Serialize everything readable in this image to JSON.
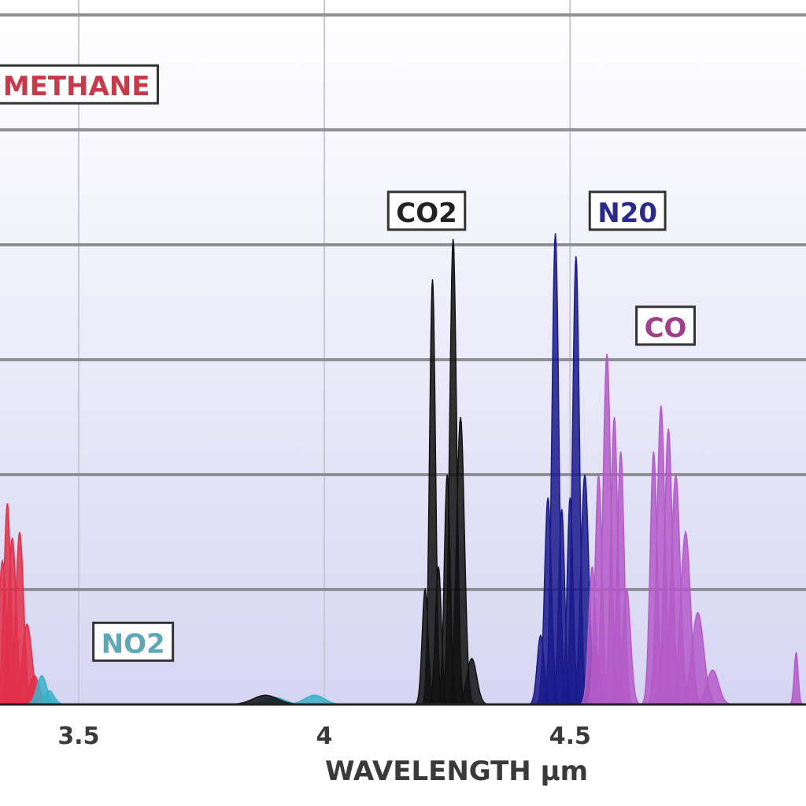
{
  "chart_data": {
    "type": "area",
    "xlabel": "WAVELENGTH µm",
    "xlim": [
      3.34,
      4.98
    ],
    "ylim": [
      0,
      6
    ],
    "x_ticks": [
      {
        "value": 3.5,
        "label": "3.5"
      },
      {
        "value": 4.0,
        "label": "4"
      },
      {
        "value": 4.5,
        "label": "4.5"
      }
    ],
    "y_gridlines": [
      1,
      2,
      3,
      4,
      5,
      6
    ],
    "grid": "horizontal and vertical",
    "background": "lavender gradient",
    "series": [
      {
        "name": "METHANE",
        "color": "#e0304a",
        "label_color": "#c83a4a",
        "peaks": [
          {
            "x": 3.345,
            "y": 1.25,
            "w": 0.008
          },
          {
            "x": 3.355,
            "y": 1.75,
            "w": 0.007
          },
          {
            "x": 3.365,
            "y": 1.45,
            "w": 0.008
          },
          {
            "x": 3.38,
            "y": 1.5,
            "w": 0.008
          },
          {
            "x": 3.395,
            "y": 0.7,
            "w": 0.01
          },
          {
            "x": 3.41,
            "y": 0.25,
            "w": 0.01
          }
        ]
      },
      {
        "name": "NO2",
        "color": "#3ab0c8",
        "label_color": "#5fa6b6",
        "peaks": [
          {
            "x": 3.425,
            "y": 0.25,
            "w": 0.01
          },
          {
            "x": 3.44,
            "y": 0.12,
            "w": 0.01
          },
          {
            "x": 3.9,
            "y": 0.06,
            "w": 0.02
          },
          {
            "x": 3.98,
            "y": 0.08,
            "w": 0.02
          }
        ]
      },
      {
        "name": "CO2",
        "color": "#111111",
        "label_color": "#222222",
        "peaks": [
          {
            "x": 3.88,
            "y": 0.08,
            "w": 0.025
          },
          {
            "x": 4.205,
            "y": 1.0,
            "w": 0.006
          },
          {
            "x": 4.22,
            "y": 3.7,
            "w": 0.006
          },
          {
            "x": 4.232,
            "y": 1.2,
            "w": 0.006
          },
          {
            "x": 4.25,
            "y": 2.0,
            "w": 0.006
          },
          {
            "x": 4.262,
            "y": 4.05,
            "w": 0.007
          },
          {
            "x": 4.277,
            "y": 2.5,
            "w": 0.008
          },
          {
            "x": 4.3,
            "y": 0.4,
            "w": 0.01
          }
        ]
      },
      {
        "name": "N2O",
        "color": "#1a1a8c",
        "label_color": "#2a2a8c",
        "peaks": [
          {
            "x": 4.44,
            "y": 0.6,
            "w": 0.007
          },
          {
            "x": 4.455,
            "y": 1.8,
            "w": 0.007
          },
          {
            "x": 4.47,
            "y": 4.1,
            "w": 0.007
          },
          {
            "x": 4.483,
            "y": 1.7,
            "w": 0.006
          },
          {
            "x": 4.5,
            "y": 1.8,
            "w": 0.006
          },
          {
            "x": 4.512,
            "y": 3.9,
            "w": 0.007
          },
          {
            "x": 4.53,
            "y": 2.0,
            "w": 0.008
          },
          {
            "x": 4.55,
            "y": 0.5,
            "w": 0.01
          }
        ]
      },
      {
        "name": "CO",
        "color": "#b45ac8",
        "label_color": "#a0408c",
        "peaks": [
          {
            "x": 4.545,
            "y": 1.2,
            "w": 0.007
          },
          {
            "x": 4.558,
            "y": 2.0,
            "w": 0.007
          },
          {
            "x": 4.575,
            "y": 3.05,
            "w": 0.008
          },
          {
            "x": 4.59,
            "y": 2.5,
            "w": 0.007
          },
          {
            "x": 4.603,
            "y": 2.2,
            "w": 0.007
          },
          {
            "x": 4.615,
            "y": 1.0,
            "w": 0.008
          },
          {
            "x": 4.67,
            "y": 2.2,
            "w": 0.007
          },
          {
            "x": 4.685,
            "y": 2.6,
            "w": 0.008
          },
          {
            "x": 4.7,
            "y": 2.4,
            "w": 0.008
          },
          {
            "x": 4.715,
            "y": 2.0,
            "w": 0.009
          },
          {
            "x": 4.735,
            "y": 1.5,
            "w": 0.01
          },
          {
            "x": 4.76,
            "y": 0.8,
            "w": 0.012
          },
          {
            "x": 4.79,
            "y": 0.3,
            "w": 0.012
          },
          {
            "x": 4.96,
            "y": 0.45,
            "w": 0.004
          }
        ]
      }
    ],
    "annotations": [
      {
        "series": "METHANE",
        "text": "METHANE",
        "x": 3.33,
        "y": 5.3,
        "text_color": "#c83a4a"
      },
      {
        "series": "CO2",
        "text": "CO2",
        "x": 4.13,
        "y": 4.2,
        "text_color": "#222222"
      },
      {
        "series": "N2O",
        "text": "N20",
        "x": 4.54,
        "y": 4.2,
        "text_color": "#2a2a8c"
      },
      {
        "series": "NO2",
        "text": "NO2",
        "x": 3.53,
        "y": 0.45,
        "text_color": "#5fa6b6"
      },
      {
        "series": "CO",
        "text": "CO",
        "x": 4.635,
        "y": 3.2,
        "text_color": "#a0408c"
      }
    ]
  }
}
